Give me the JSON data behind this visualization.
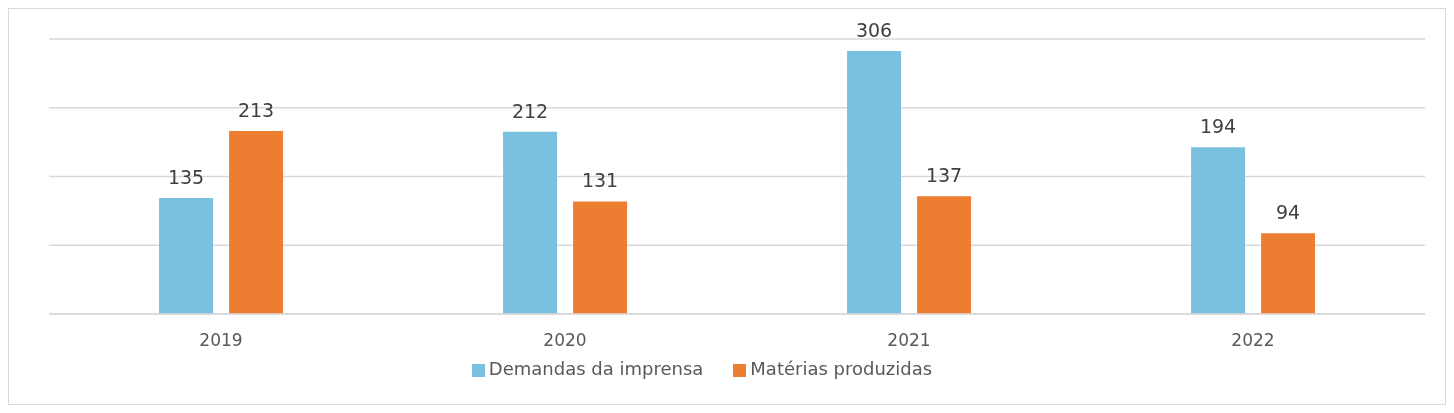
{
  "chart_data": {
    "type": "bar",
    "categories": [
      "2019",
      "2020",
      "2021",
      "2022"
    ],
    "series": [
      {
        "name": "Demandas da imprensa",
        "color": "#7ac0df",
        "values": [
          135,
          212,
          306,
          194
        ]
      },
      {
        "name": "Matérias produzidas",
        "color": "#ed7d31",
        "values": [
          213,
          131,
          137,
          94
        ]
      }
    ],
    "tick_labels": "x",
    "grid": "y",
    "legend": "bottom",
    "data_labels": true
  }
}
